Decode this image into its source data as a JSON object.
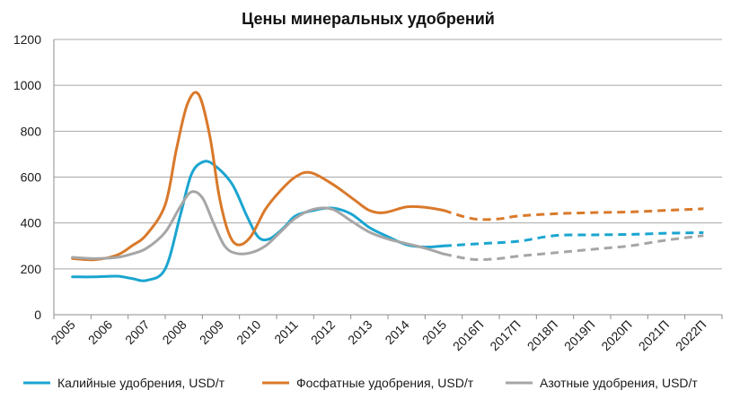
{
  "chart_data": {
    "type": "line",
    "title": "Цены минеральных удобрений",
    "xlabel": "",
    "ylabel": "",
    "ylim": [
      0,
      1200
    ],
    "yticks": [
      0,
      200,
      400,
      600,
      800,
      1000,
      1200
    ],
    "grid": true,
    "legend_position": "bottom",
    "categories": [
      "2005",
      "2006",
      "2007",
      "2008",
      "2009",
      "2010",
      "2011",
      "2012",
      "2013",
      "2014",
      "2015",
      "2016П",
      "2017П",
      "2018П",
      "2019П",
      "2020П",
      "2021П",
      "2022П"
    ],
    "forecast_start_index": 10,
    "series": [
      {
        "name": "Калийные удобрения, USD/т",
        "color": "#1aa5d0",
        "points": [
          [
            0,
            165
          ],
          [
            0.6,
            165
          ],
          [
            1.2,
            168
          ],
          [
            1.6,
            158
          ],
          [
            2.0,
            150
          ],
          [
            2.5,
            200
          ],
          [
            2.9,
            430
          ],
          [
            3.2,
            610
          ],
          [
            3.5,
            665
          ],
          [
            3.8,
            655
          ],
          [
            4.3,
            570
          ],
          [
            4.7,
            430
          ],
          [
            5.0,
            340
          ],
          [
            5.3,
            330
          ],
          [
            5.7,
            380
          ],
          [
            6.0,
            430
          ],
          [
            6.5,
            455
          ],
          [
            7.0,
            465
          ],
          [
            7.5,
            440
          ],
          [
            8.0,
            380
          ],
          [
            8.5,
            340
          ],
          [
            9.0,
            305
          ],
          [
            9.5,
            295
          ],
          [
            10.0,
            300
          ],
          [
            11.0,
            310
          ],
          [
            12.0,
            320
          ],
          [
            13.0,
            345
          ],
          [
            14.0,
            348
          ],
          [
            15.0,
            350
          ],
          [
            16.0,
            355
          ],
          [
            17.0,
            358
          ]
        ]
      },
      {
        "name": "Фосфатные удобрения, USD/т",
        "color": "#d9792a",
        "points": [
          [
            0,
            245
          ],
          [
            0.6,
            240
          ],
          [
            1.2,
            260
          ],
          [
            1.6,
            300
          ],
          [
            2.0,
            350
          ],
          [
            2.5,
            480
          ],
          [
            2.8,
            720
          ],
          [
            3.1,
            920
          ],
          [
            3.4,
            960
          ],
          [
            3.7,
            780
          ],
          [
            3.95,
            520
          ],
          [
            4.2,
            360
          ],
          [
            4.45,
            305
          ],
          [
            4.8,
            340
          ],
          [
            5.2,
            460
          ],
          [
            5.6,
            540
          ],
          [
            6.0,
            600
          ],
          [
            6.4,
            620
          ],
          [
            7.0,
            570
          ],
          [
            7.6,
            500
          ],
          [
            8.0,
            455
          ],
          [
            8.4,
            445
          ],
          [
            9.0,
            470
          ],
          [
            9.5,
            468
          ],
          [
            10.0,
            455
          ],
          [
            10.6,
            425
          ],
          [
            11.0,
            415
          ],
          [
            11.5,
            418
          ],
          [
            12.0,
            430
          ],
          [
            13.0,
            440
          ],
          [
            14.0,
            445
          ],
          [
            15.0,
            448
          ],
          [
            16.0,
            455
          ],
          [
            17.0,
            462
          ]
        ]
      },
      {
        "name": "Азотные удобрения, USD/т",
        "color": "#a6a6a6",
        "points": [
          [
            0,
            250
          ],
          [
            0.6,
            245
          ],
          [
            1.2,
            250
          ],
          [
            1.6,
            265
          ],
          [
            2.0,
            290
          ],
          [
            2.5,
            360
          ],
          [
            2.9,
            470
          ],
          [
            3.2,
            535
          ],
          [
            3.5,
            510
          ],
          [
            3.8,
            400
          ],
          [
            4.1,
            300
          ],
          [
            4.4,
            268
          ],
          [
            4.8,
            270
          ],
          [
            5.2,
            300
          ],
          [
            5.6,
            360
          ],
          [
            6.0,
            420
          ],
          [
            6.5,
            460
          ],
          [
            7.0,
            460
          ],
          [
            7.5,
            410
          ],
          [
            8.0,
            360
          ],
          [
            8.5,
            330
          ],
          [
            9.0,
            310
          ],
          [
            9.5,
            290
          ],
          [
            10.0,
            265
          ],
          [
            10.6,
            245
          ],
          [
            11.0,
            240
          ],
          [
            11.5,
            245
          ],
          [
            12.0,
            255
          ],
          [
            13.0,
            270
          ],
          [
            14.0,
            285
          ],
          [
            15.0,
            300
          ],
          [
            16.0,
            325
          ],
          [
            17.0,
            345
          ]
        ]
      }
    ]
  }
}
